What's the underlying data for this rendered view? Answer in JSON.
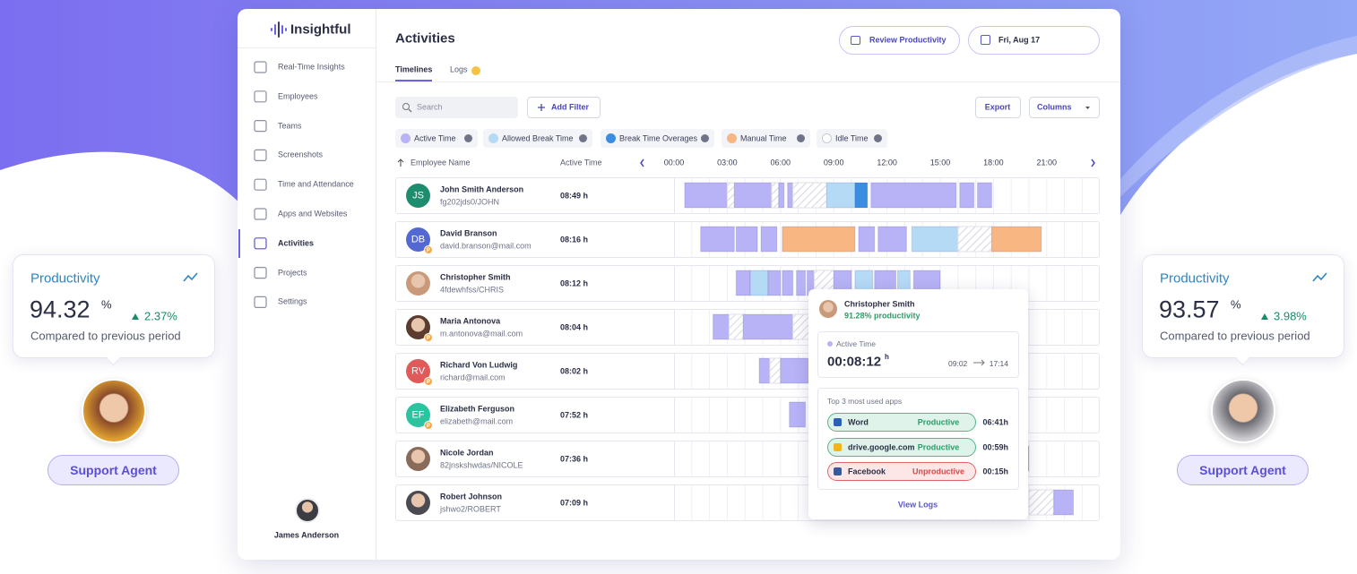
{
  "brand": "Insightful",
  "nav": [
    "Real-Time Insights",
    "Employees",
    "Teams",
    "Screenshots",
    "Time and Attendance",
    "Apps and Websites",
    "Activities",
    "Projects",
    "Settings"
  ],
  "user": "James Anderson",
  "header": {
    "title": "Activities",
    "tabs": [
      "Timelines",
      "Logs"
    ],
    "review": "Review Productivity",
    "date": "Fri, Aug 17"
  },
  "toolbar": {
    "search": "Search",
    "add_filter": "Add Filter",
    "export": "Export",
    "columns": "Columns"
  },
  "legend": [
    {
      "name": "Active Time",
      "color": "#b8b2f6"
    },
    {
      "name": "Allowed Break Time",
      "color": "#b5daf6"
    },
    {
      "name": "Break Time Overages",
      "color": "#3a8de0"
    },
    {
      "name": "Manual Time",
      "color": "#f8b782"
    },
    {
      "name": "Idle Time",
      "color": "#c9cad8",
      "hatched": true
    }
  ],
  "table": {
    "columns": [
      "Employee Name",
      "Active Time"
    ],
    "hours": [
      "00:00",
      "03:00",
      "06:00",
      "09:00",
      "12:00",
      "15:00",
      "18:00",
      "21:00"
    ],
    "rows": [
      {
        "initials": "JS",
        "color": "#1e8c6e",
        "name": "John Smith Anderson",
        "id": "fg202jds0/JOHN",
        "active": "08:49 h",
        "segments": [
          [
            0.6,
            3.0,
            "Active Time"
          ],
          [
            3.0,
            3.4,
            "Idle Time"
          ],
          [
            3.4,
            5.5,
            "Active Time"
          ],
          [
            5.5,
            5.9,
            "Idle Time"
          ],
          [
            5.9,
            6.2,
            "Active Time"
          ],
          [
            6.4,
            6.7,
            "Active Time"
          ],
          [
            6.7,
            8.6,
            "Idle Time"
          ],
          [
            8.6,
            10.2,
            "Allowed Break Time"
          ],
          [
            10.2,
            10.9,
            "Break Time Overages"
          ],
          [
            11.1,
            15.9,
            "Active Time"
          ],
          [
            16.1,
            16.9,
            "Active Time"
          ],
          [
            17.1,
            17.9,
            "Active Time"
          ]
        ]
      },
      {
        "initials": "DB",
        "color": "#5468d4",
        "badge": "P",
        "name": "David Branson",
        "id": "david.branson@mail.com",
        "active": "08:16 h",
        "segments": [
          [
            1.5,
            3.4,
            "Active Time"
          ],
          [
            3.5,
            4.7,
            "Active Time"
          ],
          [
            4.9,
            5.8,
            "Active Time"
          ],
          [
            6.1,
            10.2,
            "Manual Time"
          ],
          [
            10.4,
            11.3,
            "Active Time"
          ],
          [
            11.5,
            13.1,
            "Active Time"
          ],
          [
            13.4,
            16.0,
            "Allowed Break Time"
          ],
          [
            16.0,
            17.9,
            "Idle Time"
          ],
          [
            17.9,
            20.7,
            "Manual Time"
          ]
        ]
      },
      {
        "photo": "#c99a7a",
        "name": "Christopher Smith",
        "id": "4fdewhfss/CHRIS",
        "active": "08:12 h",
        "segments": [
          [
            3.5,
            4.3,
            "Active Time"
          ],
          [
            4.3,
            5.3,
            "Allowed Break Time"
          ],
          [
            5.3,
            6.0,
            "Active Time"
          ],
          [
            6.1,
            6.7,
            "Active Time"
          ],
          [
            6.9,
            7.4,
            "Active Time"
          ],
          [
            7.5,
            7.9,
            "Active Time"
          ],
          [
            7.9,
            9.0,
            "Idle Time"
          ],
          [
            9.0,
            10.0,
            "Active Time"
          ],
          [
            10.2,
            11.2,
            "Allowed Break Time"
          ],
          [
            11.3,
            12.5,
            "Active Time"
          ],
          [
            12.6,
            13.3,
            "Allowed Break Time"
          ],
          [
            13.5,
            15.0,
            "Active Time"
          ]
        ]
      },
      {
        "photo": "#5a3b2e",
        "badge": "P",
        "name": "Maria Antonova",
        "id": "m.antonova@mail.com",
        "active": "08:04 h",
        "segments": [
          [
            2.2,
            3.1,
            "Active Time"
          ],
          [
            3.1,
            3.9,
            "Idle Time"
          ],
          [
            3.9,
            6.7,
            "Active Time"
          ],
          [
            6.7,
            7.6,
            "Idle Time"
          ]
        ]
      },
      {
        "initials": "RV",
        "color": "#e05a5a",
        "badge": "P",
        "name": "Richard Von Ludwig",
        "id": "richard@mail.com",
        "active": "08:02 h",
        "segments": [
          [
            4.8,
            5.4,
            "Active Time"
          ],
          [
            5.4,
            6.0,
            "Idle Time"
          ],
          [
            6.0,
            7.6,
            "Active Time"
          ]
        ]
      },
      {
        "initials": "EF",
        "color": "#2cc4a0",
        "badge": "P",
        "name": "Elizabeth Ferguson",
        "id": "elizabeth@mail.com",
        "active": "07:52 h",
        "segments": [
          [
            6.5,
            7.4,
            "Active Time"
          ]
        ]
      },
      {
        "photo": "#8a6a5a",
        "name": "Nicole Jordan",
        "id": "82jnskshwdas/NICOLE",
        "active": "07:36 h",
        "segments": [
          [
            19.5,
            20.0,
            "Active Time"
          ]
        ]
      },
      {
        "photo": "#4a4a50",
        "name": "Robert Johnson",
        "id": "jshwo2/ROBERT",
        "active": "07:09 h",
        "segments": [
          [
            20.0,
            21.4,
            "Idle Time"
          ],
          [
            21.4,
            22.5,
            "Active Time"
          ]
        ]
      }
    ]
  },
  "tooltip": {
    "name": "Christopher Smith",
    "productivity": "91.28% productivity",
    "label": "Active Time",
    "value": "00:08:12",
    "unit": "h",
    "from": "09:02",
    "to": "17:14",
    "apps_title": "Top 3 most used apps",
    "apps": [
      {
        "name": "Word",
        "status": "Productive",
        "time": "06:41h"
      },
      {
        "name": "drive.google.com",
        "status": "Productive",
        "time": "00:59h"
      },
      {
        "name": "Facebook",
        "status": "Unproductive",
        "time": "00:15h"
      }
    ],
    "link": "View Logs"
  },
  "cards": [
    {
      "title": "Productivity",
      "value": "94.32",
      "unit": "%",
      "change": "2.37%",
      "note": "Compared to previous period",
      "role": "Support Agent"
    },
    {
      "title": "Productivity",
      "value": "93.57",
      "unit": "%",
      "change": "3.98%",
      "note": "Compared to previous period",
      "role": "Support Agent"
    }
  ]
}
